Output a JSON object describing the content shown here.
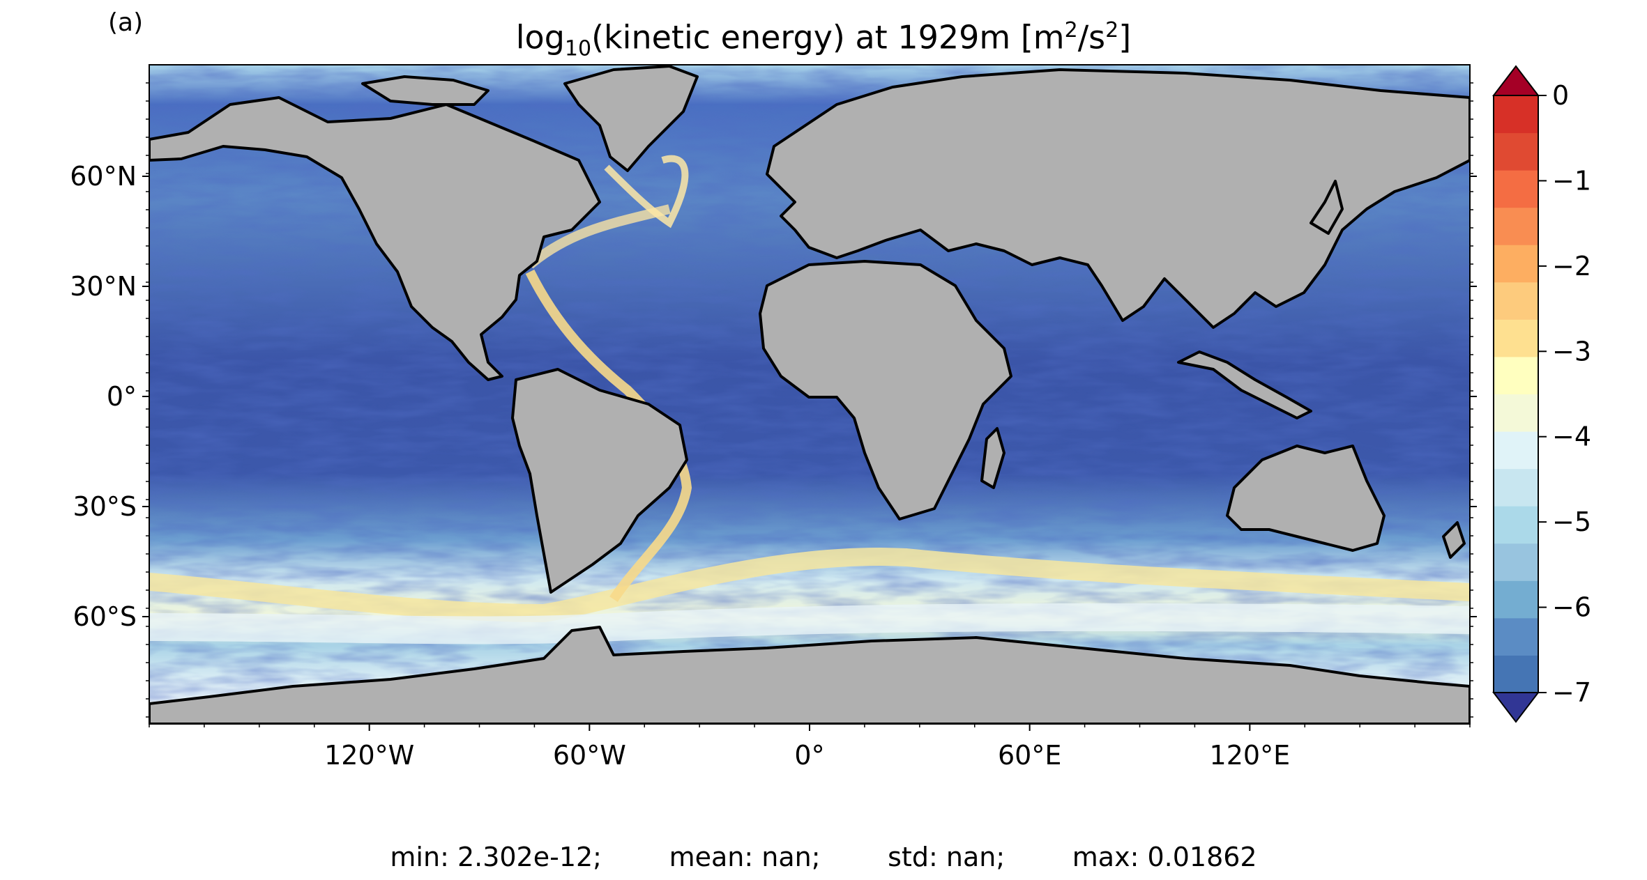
{
  "panel_label": "(a)",
  "title": {
    "prefix": "log",
    "sub": "10",
    "middle": "(kinetic energy) at 1929m [m",
    "sup1": "2",
    "mid2": "/s",
    "sup2": "2",
    "suffix": "]"
  },
  "map": {
    "lat_ticks": [
      "60°N",
      "30°N",
      "0°",
      "30°S",
      "60°S"
    ],
    "lon_ticks": [
      "120°W",
      "60°W",
      "0°",
      "60°E",
      "120°E"
    ],
    "land_color": "#b0b0b0",
    "coast_color": "#000000"
  },
  "colorbar": {
    "tick_labels": [
      "0",
      "−1",
      "−2",
      "−3",
      "−4",
      "−5",
      "−6",
      "−7"
    ],
    "vmin": -7,
    "vmax": 0,
    "extend": "both",
    "level_colors": [
      "#313695",
      "#4575b4",
      "#5b8cc4",
      "#74add1",
      "#98c4df",
      "#abd9e9",
      "#c8e6f0",
      "#e0f3f8",
      "#f4f9d8",
      "#ffffbf",
      "#fee090",
      "#fdcb7d",
      "#fdae61",
      "#f98d52",
      "#f46d43",
      "#e04a32",
      "#d73027",
      "#a50026"
    ]
  },
  "stats": {
    "min": "min: 2.302e-12;",
    "mean": "mean: nan;",
    "std": "std: nan;",
    "max": "max: 0.01862"
  }
}
